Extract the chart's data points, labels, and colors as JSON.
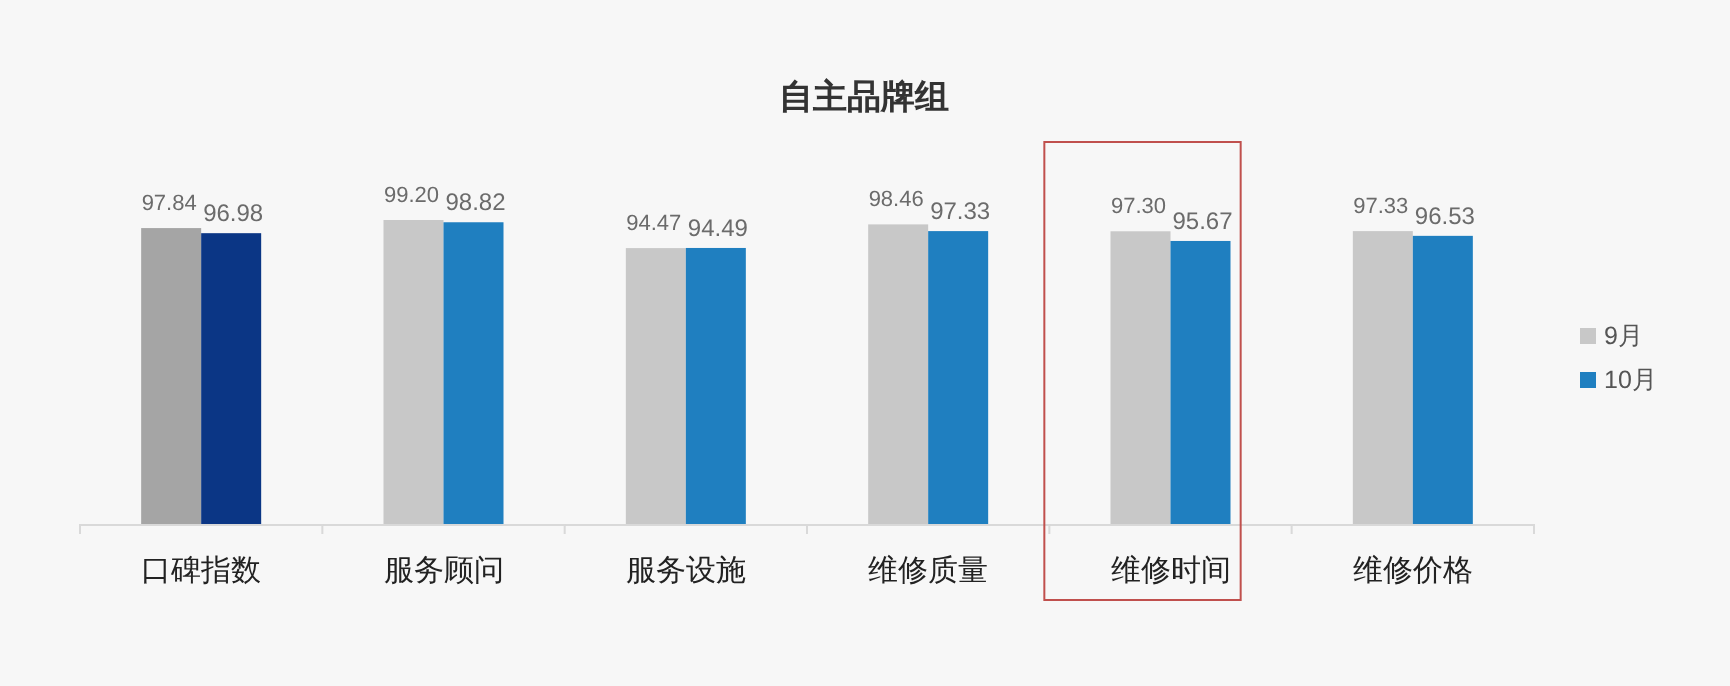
{
  "chart_data": {
    "type": "bar",
    "title": "自主品牌组",
    "categories": [
      "口碑指数",
      "服务顾问",
      "服务设施",
      "维修质量",
      "维修时间",
      "维修价格"
    ],
    "series": [
      {
        "name": "9月",
        "color": "#c8c8c8",
        "colors": [
          "#a5a5a5",
          "#c8c8c8",
          "#c8c8c8",
          "#c8c8c8",
          "#c8c8c8",
          "#c8c8c8"
        ],
        "values": [
          97.84,
          99.2,
          94.47,
          98.46,
          97.3,
          97.33
        ],
        "value_labels": [
          "97.84",
          "99.20",
          "94.47",
          "98.46",
          "97.30",
          "97.33"
        ]
      },
      {
        "name": "10月",
        "color": "#1f7fc0",
        "colors": [
          "#0b3685",
          "#1f7fc0",
          "#1f7fc0",
          "#1f7fc0",
          "#1f7fc0",
          "#1f7fc0"
        ],
        "values": [
          96.98,
          98.82,
          94.49,
          97.33,
          95.67,
          96.53
        ],
        "value_labels": [
          "96.98",
          "98.82",
          "94.49",
          "97.33",
          "95.67",
          "96.53"
        ]
      }
    ],
    "ylim": [
      48,
      99.2
    ],
    "legend": "right"
  }
}
